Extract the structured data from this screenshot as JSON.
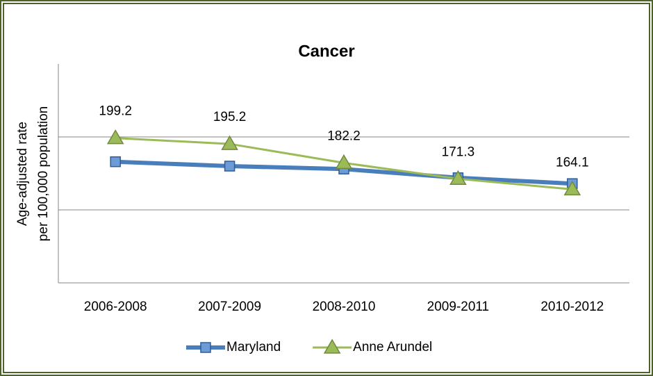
{
  "chart_data": {
    "type": "line",
    "title": "Cancer",
    "ylabel_lines": [
      "Age-adjusted rate",
      "per 100,000 population"
    ],
    "categories": [
      "2006-2008",
      "2007-2009",
      "2008-2010",
      "2009-2011",
      "2010-2012"
    ],
    "series": [
      {
        "name": "Maryland",
        "color": "#4a7ebb",
        "marker": "square",
        "values": [
          183,
          180,
          178,
          172,
          168
        ]
      },
      {
        "name": "Anne Arundel",
        "color": "#9bbb59",
        "marker": "triangle",
        "values": [
          199.2,
          195.2,
          182.2,
          171.3,
          164.1
        ],
        "data_labels": true
      }
    ],
    "ylim": [
      100,
      250
    ],
    "yticks": [
      150,
      200
    ],
    "ytick_labels": false,
    "grid": true,
    "legend": "bottom"
  }
}
